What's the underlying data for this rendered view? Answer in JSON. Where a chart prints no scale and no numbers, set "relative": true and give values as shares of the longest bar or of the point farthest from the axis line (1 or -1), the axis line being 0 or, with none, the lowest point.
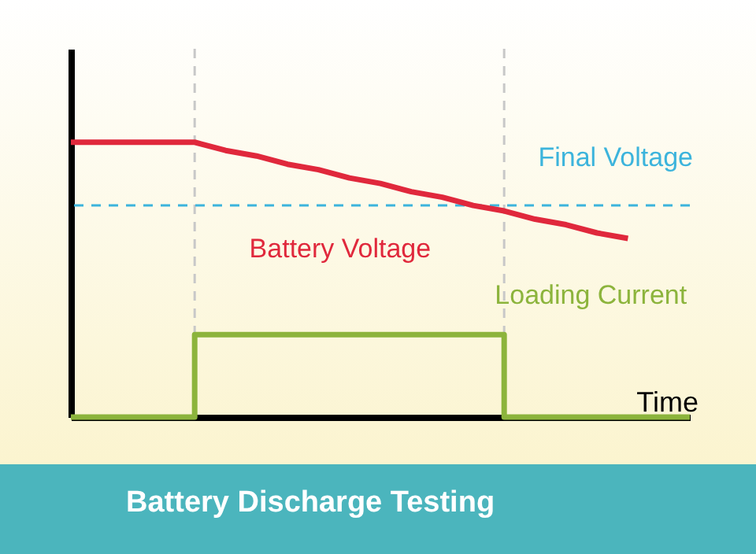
{
  "chart_data": {
    "type": "line",
    "title": "Battery Discharge Testing",
    "xlabel": "Time",
    "relative": true,
    "marker": "none",
    "line_style": "solid",
    "categories": [
      null,
      null,
      null,
      null,
      null,
      null,
      null,
      null,
      null,
      null,
      null,
      null,
      null,
      null,
      null,
      null,
      null,
      null,
      null,
      null,
      null
    ],
    "series": [
      {
        "name": "Battery Voltage",
        "color": "#e0283c",
        "values": [
          1,
          1,
          1,
          1,
          1,
          0.97,
          0.95,
          0.92,
          0.9,
          0.87,
          0.85,
          0.82,
          0.8,
          0.77,
          0.75,
          0.72,
          0.7,
          0.67,
          0.65,
          null,
          null
        ]
      },
      {
        "name": "Loading Current",
        "type": "step",
        "color": "#8cb43c",
        "values": [
          0,
          0,
          0,
          0,
          0.3,
          0.3,
          0.3,
          0.3,
          0.3,
          0.3,
          0.3,
          0.3,
          0.3,
          0.3,
          0,
          0,
          0,
          0,
          0,
          0,
          0
        ]
      }
    ],
    "ref_lines": [
      {
        "axis": "y",
        "value": 0.77,
        "label": "Final Voltage",
        "color": "#3cb4dc",
        "line_style": "dashed"
      }
    ]
  }
}
